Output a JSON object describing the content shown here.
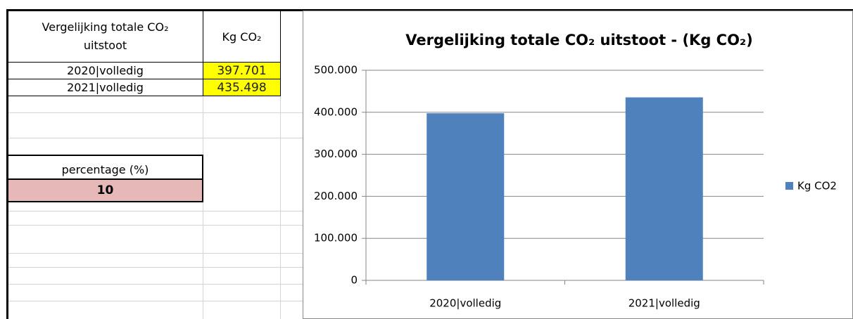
{
  "table": {
    "header": [
      "Vergelijking totale CO₂ uitstoot",
      "Kg CO₂"
    ],
    "rows": [
      [
        "2020|volledig",
        "397.701"
      ],
      [
        "2021|volledig",
        "435.498"
      ]
    ],
    "percentage_label": "percentage (%)",
    "percentage_value": "10"
  },
  "chart_data": {
    "type": "bar",
    "title": "Vergelijking totale CO₂ uitstoot -  (Kg CO₂)",
    "categories": [
      "2020|volledig",
      "2021|volledig"
    ],
    "series": [
      {
        "name": "Kg CO2",
        "color": "#4f81bd",
        "values": [
          397701,
          435498
        ]
      }
    ],
    "ylim": [
      0,
      500000
    ],
    "yticks": [
      0,
      {
        "value": 100000,
        "label": "100.000"
      },
      {
        "value": 200000,
        "label": "200.000"
      },
      {
        "value": 300000,
        "label": "300.000"
      },
      {
        "value": 400000,
        "label": "400.000"
      },
      {
        "value": 500000,
        "label": "500.000"
      }
    ],
    "grid": true,
    "legend": "right"
  }
}
